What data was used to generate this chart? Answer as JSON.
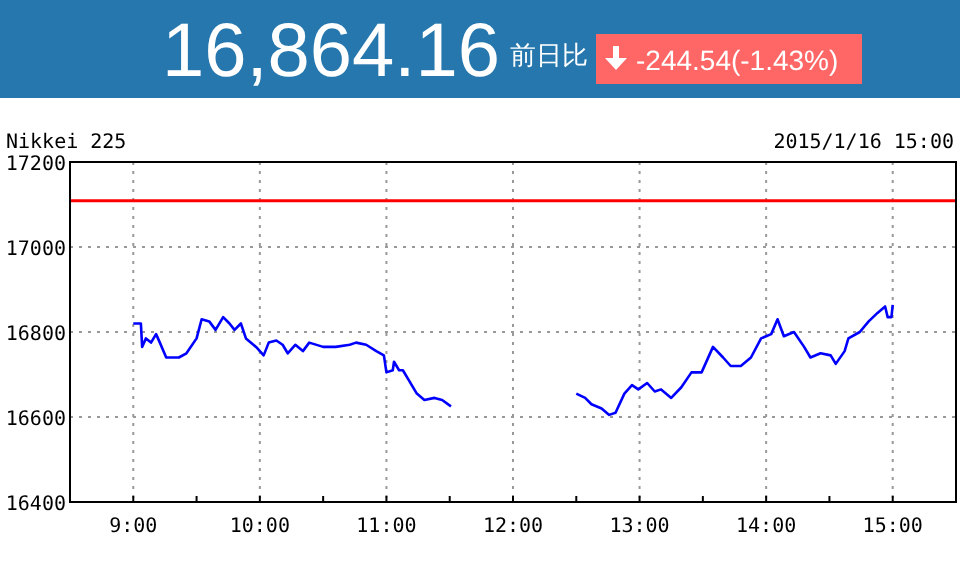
{
  "chart_data": {
    "type": "line",
    "title": "16,864.16",
    "subtitle": "Nikkei 225",
    "annotations": [
      "前日比",
      "-244.54(-1.43%)",
      "2015/1/16 15:00"
    ],
    "xlim": [
      8.5,
      15.5
    ],
    "ylim": [
      16400,
      17200
    ],
    "xticks": [
      {
        "value": 9,
        "label": "9:00"
      },
      {
        "value": 9.5,
        "label": null
      },
      {
        "value": 10,
        "label": "10:00"
      },
      {
        "value": 10.5,
        "label": null
      },
      {
        "value": 11,
        "label": "11:00"
      },
      {
        "value": 11.5,
        "label": null
      },
      {
        "value": 12,
        "label": "12:00"
      },
      {
        "value": 12.5,
        "label": null
      },
      {
        "value": 13,
        "label": "13:00"
      },
      {
        "value": 13.5,
        "label": null
      },
      {
        "value": 14,
        "label": "14:00"
      },
      {
        "value": 14.5,
        "label": null
      },
      {
        "value": 15,
        "label": "15:00"
      }
    ],
    "yticks": [
      16400,
      16600,
      16800,
      17000,
      17200
    ],
    "grid": true,
    "line_style": "solid",
    "ref_lines": [
      {
        "axis": "y",
        "value": 17108.7,
        "color": "#ff0000"
      }
    ],
    "series": [
      {
        "color": "#0000ff",
        "x": [
          9.0,
          9.06,
          9.07,
          9.1,
          9.14,
          9.18,
          9.21,
          9.26,
          9.36,
          9.42,
          9.5,
          9.54,
          9.6,
          9.65,
          9.71,
          9.76,
          9.8,
          9.85,
          9.89,
          9.97,
          10.03,
          10.07,
          10.13,
          10.18,
          10.22,
          10.28,
          10.34,
          10.39,
          10.5,
          10.6,
          10.71,
          10.76,
          10.84,
          10.92,
          10.98,
          11.0,
          11.05,
          11.06,
          11.1,
          11.13,
          11.18,
          11.24,
          11.3,
          11.38,
          11.44,
          11.51
        ],
        "values": [
          16820,
          16820,
          16765,
          16785,
          16775,
          16795,
          16775,
          16740,
          16740,
          16750,
          16785,
          16830,
          16825,
          16805,
          16835,
          16820,
          16805,
          16820,
          16785,
          16765,
          16745,
          16775,
          16780,
          16770,
          16750,
          16770,
          16755,
          16775,
          16765,
          16765,
          16770,
          16775,
          16770,
          16755,
          16745,
          16705,
          16710,
          16730,
          16710,
          16710,
          16685,
          16655,
          16640,
          16645,
          16640,
          16625
        ]
      },
      {
        "color": "#0000ff",
        "x": [
          12.5,
          12.57,
          12.62,
          12.7,
          12.76,
          12.81,
          12.88,
          12.94,
          12.99,
          13.06,
          13.12,
          13.17,
          13.25,
          13.33,
          13.41,
          13.49,
          13.58,
          13.66,
          13.72,
          13.8,
          13.88,
          13.96,
          14.04,
          14.09,
          14.14,
          14.22,
          14.3,
          14.35,
          14.43,
          14.51,
          14.55,
          14.62,
          14.65,
          14.74,
          14.81,
          14.88,
          14.94,
          14.96,
          14.99,
          15.0
        ],
        "values": [
          16655,
          16645,
          16630,
          16620,
          16605,
          16610,
          16655,
          16675,
          16665,
          16680,
          16660,
          16665,
          16645,
          16670,
          16705,
          16705,
          16765,
          16740,
          16720,
          16720,
          16740,
          16785,
          16795,
          16830,
          16790,
          16800,
          16765,
          16740,
          16750,
          16745,
          16725,
          16755,
          16785,
          16800,
          16825,
          16845,
          16860,
          16835,
          16835,
          16864
        ]
      }
    ]
  }
}
